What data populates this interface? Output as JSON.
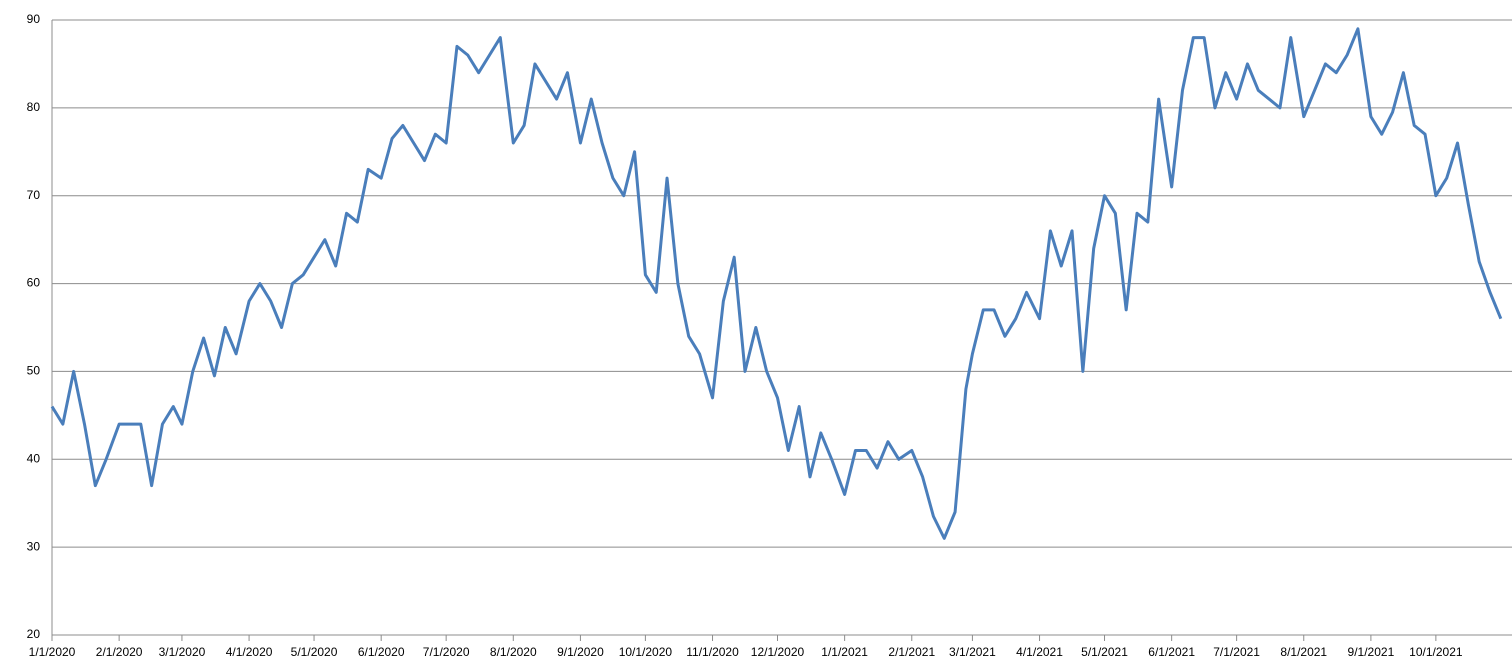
{
  "chart_data": {
    "type": "line",
    "x": [
      "1/1/2020",
      "1/6/2020",
      "1/11/2020",
      "1/16/2020",
      "1/21/2020",
      "1/26/2020",
      "2/1/2020",
      "2/6/2020",
      "2/11/2020",
      "2/16/2020",
      "2/21/2020",
      "2/26/2020",
      "3/1/2020",
      "3/6/2020",
      "3/11/2020",
      "3/16/2020",
      "3/21/2020",
      "3/26/2020",
      "4/1/2020",
      "4/6/2020",
      "4/11/2020",
      "4/16/2020",
      "4/21/2020",
      "4/26/2020",
      "5/1/2020",
      "5/6/2020",
      "5/11/2020",
      "5/16/2020",
      "5/21/2020",
      "5/26/2020",
      "6/1/2020",
      "6/6/2020",
      "6/11/2020",
      "6/16/2020",
      "6/21/2020",
      "6/26/2020",
      "7/1/2020",
      "7/6/2020",
      "7/11/2020",
      "7/16/2020",
      "7/21/2020",
      "7/26/2020",
      "8/1/2020",
      "8/6/2020",
      "8/11/2020",
      "8/16/2020",
      "8/21/2020",
      "8/26/2020",
      "9/1/2020",
      "9/6/2020",
      "9/11/2020",
      "9/16/2020",
      "9/21/2020",
      "9/26/2020",
      "10/1/2020",
      "10/6/2020",
      "10/11/2020",
      "10/16/2020",
      "10/21/2020",
      "10/26/2020",
      "11/1/2020",
      "11/6/2020",
      "11/11/2020",
      "11/16/2020",
      "11/21/2020",
      "11/26/2020",
      "12/1/2020",
      "12/6/2020",
      "12/11/2020",
      "12/16/2020",
      "12/21/2020",
      "12/26/2020",
      "1/1/2021",
      "1/6/2021",
      "1/11/2021",
      "1/16/2021",
      "1/21/2021",
      "1/26/2021",
      "2/1/2021",
      "2/6/2021",
      "2/11/2021",
      "2/16/2021",
      "2/21/2021",
      "2/26/2021",
      "3/1/2021",
      "3/6/2021",
      "3/11/2021",
      "3/16/2021",
      "3/21/2021",
      "3/26/2021",
      "4/1/2021",
      "4/6/2021",
      "4/11/2021",
      "4/16/2021",
      "4/21/2021",
      "4/26/2021",
      "5/1/2021",
      "5/6/2021",
      "5/11/2021",
      "5/16/2021",
      "5/21/2021",
      "5/26/2021",
      "6/1/2021",
      "6/6/2021",
      "6/11/2021",
      "6/16/2021",
      "6/21/2021",
      "6/26/2021",
      "7/1/2021",
      "7/6/2021",
      "7/11/2021",
      "7/16/2021",
      "7/21/2021",
      "7/26/2021",
      "8/1/2021",
      "8/6/2021",
      "8/11/2021",
      "8/16/2021",
      "8/21/2021",
      "8/26/2021",
      "9/1/2021",
      "9/6/2021",
      "9/11/2021",
      "9/16/2021",
      "9/21/2021",
      "9/26/2021",
      "10/1/2021",
      "10/6/2021",
      "10/11/2021",
      "10/16/2021",
      "10/21/2021",
      "10/26/2021",
      "10/31/2021"
    ],
    "values": [
      46,
      44,
      50,
      44,
      37,
      40,
      44,
      44,
      44,
      37,
      44,
      46,
      44,
      50,
      53.8,
      49.5,
      55,
      52,
      58,
      60,
      58,
      55,
      60,
      61,
      63,
      65,
      62,
      68,
      67,
      73,
      72,
      76.5,
      78,
      76,
      74,
      77,
      76,
      87,
      86,
      84,
      86,
      88,
      76,
      78,
      85,
      83,
      81,
      84,
      76,
      81,
      76,
      72,
      70,
      75,
      61,
      59,
      72,
      60,
      54,
      52,
      47,
      58,
      63,
      50,
      55,
      50,
      47,
      41,
      46,
      38,
      43,
      40,
      36,
      41,
      41,
      39,
      42,
      40,
      41,
      38,
      33.5,
      31,
      34,
      48,
      52,
      57,
      57,
      54,
      56,
      59,
      56,
      66,
      62,
      66,
      50,
      64,
      70,
      68,
      57,
      68,
      67,
      81,
      71,
      82,
      88,
      88,
      80,
      84,
      81,
      85,
      82,
      81,
      80,
      88,
      79,
      82,
      85,
      84,
      86,
      89,
      79,
      77,
      79.5,
      84,
      78,
      77,
      70,
      72,
      76,
      69,
      62.5,
      59,
      56
    ],
    "color": "#4a7ebb",
    "xlim": [
      "1/1/2020",
      "11/1/2021"
    ],
    "xticks": [
      "1/1/2020",
      "2/1/2020",
      "3/1/2020",
      "4/1/2020",
      "5/1/2020",
      "6/1/2020",
      "7/1/2020",
      "8/1/2020",
      "9/1/2020",
      "10/1/2020",
      "11/1/2020",
      "12/1/2020",
      "1/1/2021",
      "2/1/2021",
      "3/1/2021",
      "4/1/2021",
      "5/1/2021",
      "6/1/2021",
      "7/1/2021",
      "8/1/2021",
      "9/1/2021",
      "10/1/2021"
    ],
    "ylim": [
      20,
      90
    ],
    "yticks": [
      20,
      30,
      40,
      50,
      60,
      70,
      80,
      90
    ],
    "grid": true
  }
}
